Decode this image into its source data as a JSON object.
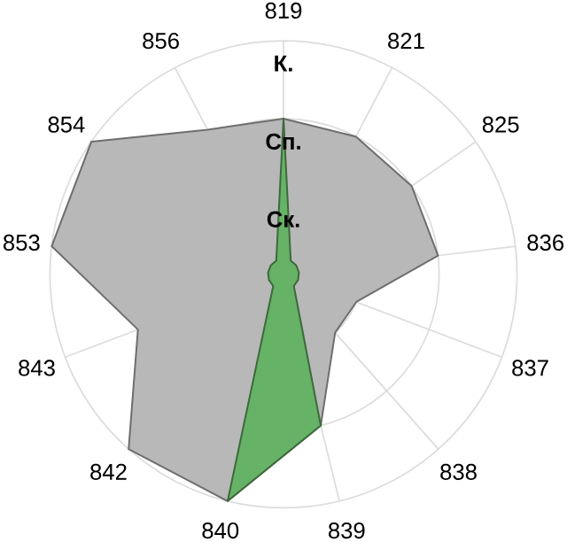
{
  "chart_data": {
    "type": "radar",
    "categories": [
      "819",
      "821",
      "825",
      "836",
      "837",
      "838",
      "839",
      "840",
      "842",
      "843",
      "853",
      "854",
      "856"
    ],
    "ylim": [
      0,
      3
    ],
    "yticks": [
      {
        "value": 1,
        "label": "Ск."
      },
      {
        "value": 2,
        "label": "Сп."
      },
      {
        "value": 3,
        "label": "К."
      }
    ],
    "grid": true,
    "series": [
      {
        "color": "#b8b8b8",
        "values": [
          2.0,
          2.0,
          2.0,
          2.0,
          1.0,
          1.0,
          2.0,
          3.0,
          3.0,
          2.0,
          3.0,
          3.0,
          2.1
        ]
      },
      {
        "color": "#66b266",
        "values": [
          2.0,
          0.2,
          0.2,
          0.2,
          0.2,
          0.2,
          2.0,
          3.0,
          0.2,
          0.2,
          0.2,
          0.2,
          0.2
        ]
      }
    ]
  }
}
